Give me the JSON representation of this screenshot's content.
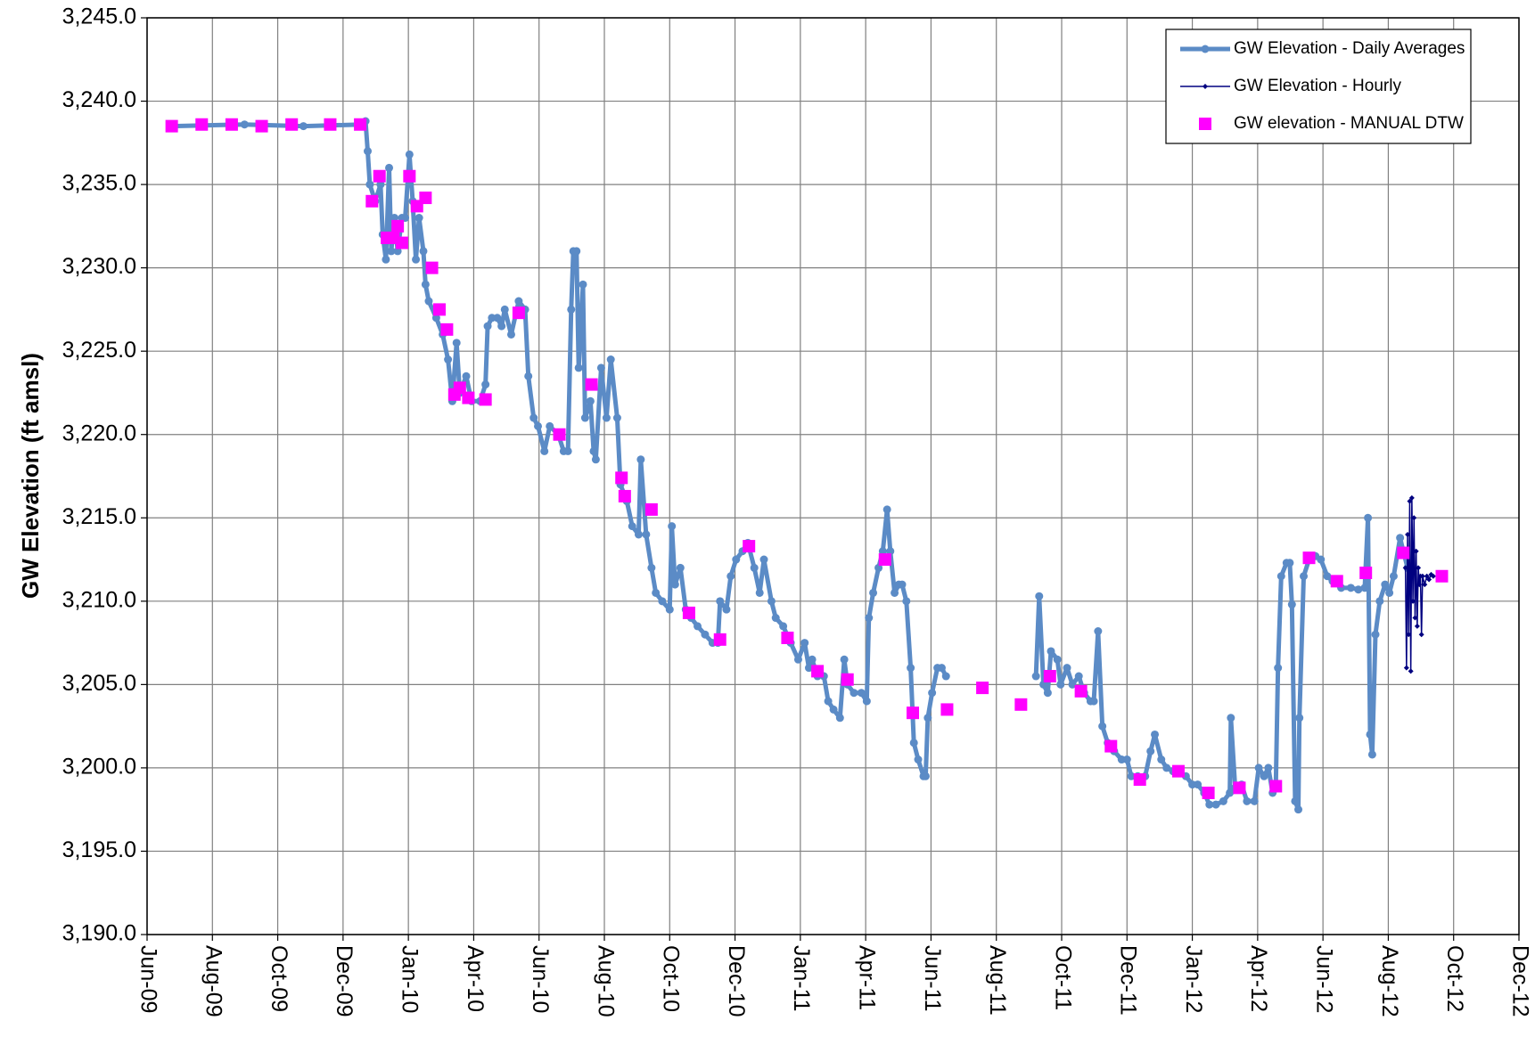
{
  "chart_data": {
    "type": "line",
    "y_label": "GW Elevation (ft amsl)",
    "xlim": [
      39965,
      41246
    ],
    "xticks": [
      {
        "value": 39965,
        "label": "Jun-09"
      },
      {
        "value": 40026,
        "label": "Aug-09"
      },
      {
        "value": 40087,
        "label": "Oct-09"
      },
      {
        "value": 40148,
        "label": "Dec-09"
      },
      {
        "value": 40209,
        "label": "Jan-10"
      },
      {
        "value": 40270,
        "label": "Apr-10"
      },
      {
        "value": 40331,
        "label": "Jun-10"
      },
      {
        "value": 40392,
        "label": "Aug-10"
      },
      {
        "value": 40453,
        "label": "Oct-10"
      },
      {
        "value": 40514,
        "label": "Dec-10"
      },
      {
        "value": 40575,
        "label": "Jan-11"
      },
      {
        "value": 40636,
        "label": "Apr-11"
      },
      {
        "value": 40697,
        "label": "Jun-11"
      },
      {
        "value": 40758,
        "label": "Aug-11"
      },
      {
        "value": 40819,
        "label": "Oct-11"
      },
      {
        "value": 40880,
        "label": "Dec-11"
      },
      {
        "value": 40941,
        "label": "Jan-12"
      },
      {
        "value": 41002,
        "label": "Apr-12"
      },
      {
        "value": 41063,
        "label": "Jun-12"
      },
      {
        "value": 41124,
        "label": "Aug-12"
      },
      {
        "value": 41185,
        "label": "Oct-12"
      },
      {
        "value": 41246,
        "label": "Dec-12"
      }
    ],
    "ylim": [
      3190,
      3245
    ],
    "yticks": [
      {
        "value": 3190,
        "label": "3,190.0"
      },
      {
        "value": 3195,
        "label": "3,195.0"
      },
      {
        "value": 3200,
        "label": "3,200.0"
      },
      {
        "value": 3205,
        "label": "3,205.0"
      },
      {
        "value": 3210,
        "label": "3,210.0"
      },
      {
        "value": 3215,
        "label": "3,215.0"
      },
      {
        "value": 3220,
        "label": "3,220.0"
      },
      {
        "value": 3225,
        "label": "3,225.0"
      },
      {
        "value": 3230,
        "label": "3,230.0"
      },
      {
        "value": 3235,
        "label": "3,235.0"
      },
      {
        "value": 3240,
        "label": "3,240.0"
      },
      {
        "value": 3245,
        "label": "3,245.0"
      }
    ],
    "grid": true,
    "legend": "top-right",
    "series": [
      {
        "name": "GW Elevation - Daily Averages",
        "color": "#5b8bc6",
        "line": true,
        "marker": "circle",
        "x": [
          39988,
          40056,
          40111,
          40166,
          40169,
          40171,
          40173,
          40178,
          40183,
          40185,
          40188,
          40191,
          40193,
          40196,
          40199,
          40203,
          40206,
          40210,
          40213,
          40216,
          40219,
          40223,
          40225,
          40228,
          40235,
          40241,
          40246,
          40250,
          40254,
          40257,
          40263,
          40268,
          40276,
          40281,
          40283,
          40287,
          40292,
          40296,
          40299,
          40305,
          40312,
          40318,
          40321,
          40326,
          40330,
          40336,
          40341,
          40349,
          40354,
          40358,
          40361,
          40363,
          40366,
          40368,
          40372,
          40374,
          40379,
          40382,
          40384,
          40389,
          40394,
          40398,
          40404,
          40407,
          40413,
          40418,
          40424,
          40426,
          40431,
          40436,
          40440,
          40446,
          40453,
          40455,
          40458,
          40463,
          40468,
          40473,
          40479,
          40486,
          40493,
          40498,
          40500,
          40506,
          40510,
          40515,
          40521,
          40526,
          40532,
          40537,
          40541,
          40548,
          40552,
          40559,
          40566,
          40573,
          40579,
          40583,
          40586,
          40591,
          40597,
          40601,
          40606,
          40612,
          40616,
          40619,
          40625,
          40632,
          40637,
          40639,
          40643,
          40648,
          40652,
          40656,
          40659,
          40663,
          40667,
          40670,
          40674,
          40678,
          40681,
          40685,
          40690,
          40692,
          40694,
          40698,
          40703,
          40707,
          40711,
          40750,
          40795,
          40798,
          40802,
          40806,
          40809,
          40815,
          40818,
          40824,
          40829,
          40835,
          40840,
          40846,
          40849,
          40853,
          40857,
          40862,
          40868,
          40875,
          40880,
          40884,
          40890,
          40897,
          40902,
          40906,
          40912,
          40917,
          40923,
          40928,
          40935,
          40941,
          40946,
          40952,
          40957,
          40963,
          40970,
          40976,
          40977,
          40981,
          40987,
          40992,
          40999,
          41003,
          41008,
          41012,
          41016,
          41019,
          41021,
          41024,
          41029,
          41032,
          41034,
          41037,
          41040,
          41041,
          41045,
          41050,
          41056,
          41061,
          41067,
          41072,
          41080,
          41089,
          41096,
          41102,
          41105,
          41107,
          41109,
          41112,
          41116,
          41121,
          41125,
          41129,
          41135,
          41138,
          41142
        ],
        "values": [
          3238.5,
          3238.6,
          3238.5,
          3238.6,
          3238.8,
          3237,
          3235,
          3234,
          3235,
          3232,
          3230.5,
          3236,
          3231,
          3233,
          3231,
          3233,
          3233,
          3236.8,
          3234,
          3230.5,
          3233,
          3231,
          3229,
          3228,
          3227,
          3226,
          3224.5,
          3222,
          3225.5,
          3222.5,
          3223.5,
          3222,
          3222,
          3223,
          3226.5,
          3227,
          3227,
          3226.5,
          3227.5,
          3226,
          3228,
          3227.5,
          3223.5,
          3221,
          3220.5,
          3219,
          3220.5,
          3220,
          3219,
          3219,
          3227.5,
          3231,
          3231,
          3224,
          3229,
          3221,
          3222,
          3219,
          3218.5,
          3224,
          3221,
          3224.5,
          3221,
          3217,
          3216,
          3214.5,
          3214,
          3218.5,
          3214,
          3212,
          3210.5,
          3210,
          3209.5,
          3214.5,
          3211,
          3212,
          3209.5,
          3209,
          3208.5,
          3208,
          3207.5,
          3207.5,
          3210,
          3209.5,
          3211.5,
          3212.5,
          3213,
          3213.5,
          3212,
          3210.5,
          3212.5,
          3210,
          3209,
          3208.5,
          3207.5,
          3206.5,
          3207.5,
          3206,
          3206.5,
          3205.5,
          3205.5,
          3204,
          3203.5,
          3203,
          3206.5,
          3205,
          3204.5,
          3204.5,
          3204,
          3209,
          3210.5,
          3212,
          3213,
          3215.5,
          3213,
          3210.5,
          3211,
          3211,
          3210,
          3206,
          3201.5,
          3200.5,
          3199.5,
          3199.5,
          3203,
          3204.5,
          3206,
          3206,
          3205.5,
          null,
          3205.5,
          3210.3,
          3205,
          3204.5,
          3207,
          3206.5,
          3205,
          3206,
          3205,
          3205.5,
          3204.5,
          3204,
          3204,
          3208.2,
          3202.5,
          3201.5,
          3201,
          3200.5,
          3200.5,
          3199.5,
          3199.5,
          3199.5,
          3201,
          3202,
          3200.5,
          3200,
          3199.8,
          3199.7,
          3199.5,
          3199,
          3199,
          3198.5,
          3197.8,
          3197.8,
          3198,
          3198.5,
          3203,
          3198.8,
          3199,
          3198,
          3198,
          3200,
          3199.5,
          3200,
          3198.5,
          3199,
          3206,
          3211.5,
          3212.3,
          3212.3,
          3209.8,
          3198,
          3197.5,
          3203,
          3211.5,
          3212.5,
          3212.7,
          3212.5,
          3211.5,
          3211.2,
          3210.8,
          3210.8,
          3210.7,
          3210.8,
          3215,
          3202,
          3200.8,
          3208,
          3210,
          3211,
          3210.5,
          3211.5,
          3213.8,
          3213,
          3212
        ]
      },
      {
        "name": "GW Elevation - Hourly",
        "color": "#000080",
        "line": true,
        "marker": "diamond",
        "x": [
          41140,
          41141,
          41142,
          41143,
          41144,
          41145,
          41146,
          41147,
          41148,
          41149,
          41150,
          41151,
          41152,
          41153,
          41154,
          41155,
          41156,
          41158,
          41160,
          41162,
          41164,
          41166
        ],
        "values": [
          3212,
          3206,
          3214,
          3208,
          3216,
          3205.8,
          3216.2,
          3210,
          3215,
          3209,
          3213,
          3208.5,
          3212,
          3211,
          3211.5,
          3208,
          3211.5,
          3211,
          3211.5,
          3211.3,
          3211.6,
          3211.5
        ]
      },
      {
        "name": "GW elevation - MANUAL DTW",
        "color": "#ff00ff",
        "line": false,
        "marker": "square",
        "x": [
          39988,
          40016,
          40044,
          40072,
          40100,
          40136,
          40164,
          40175,
          40182,
          40189,
          40195,
          40199,
          40203,
          40210,
          40217,
          40225,
          40231,
          40238,
          40245,
          40252,
          40257,
          40265,
          40281,
          40312,
          40350,
          40380,
          40408,
          40411,
          40436,
          40471,
          40500,
          40527,
          40563,
          40591,
          40619,
          40654,
          40680,
          40712,
          40745,
          40781,
          40808,
          40837,
          40865,
          40892,
          40928,
          40956,
          40985,
          41019,
          41050,
          41076,
          41103,
          41138,
          41174
        ],
        "values": [
          3238.5,
          3238.6,
          3238.6,
          3238.5,
          3238.6,
          3238.6,
          3238.6,
          3234,
          3235.5,
          3231.8,
          3231.8,
          3232.5,
          3231.5,
          3235.5,
          3233.7,
          3234.2,
          3230,
          3227.5,
          3226.3,
          3222.4,
          3222.8,
          3222.2,
          3222.1,
          3227.3,
          3220,
          3223,
          3217.4,
          3216.3,
          3215.5,
          3209.3,
          3207.7,
          3213.3,
          3207.8,
          3205.8,
          3205.3,
          3212.5,
          3203.3,
          3203.5,
          3204.8,
          3203.8,
          3205.5,
          3204.6,
          3201.3,
          3199.3,
          3199.8,
          3198.5,
          3198.8,
          3198.9,
          3212.6,
          3211.2,
          3211.7,
          3212.9,
          3211.5
        ]
      }
    ]
  }
}
